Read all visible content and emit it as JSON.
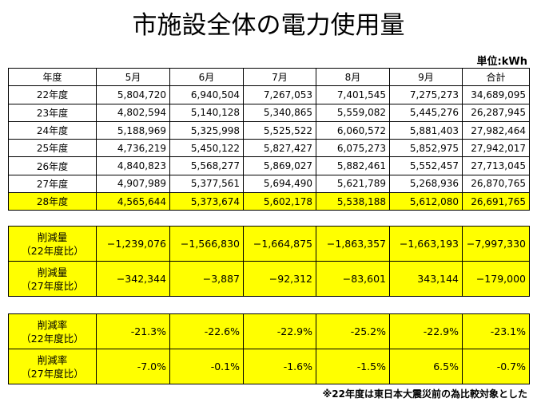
{
  "title": "市施設全体の電力使用量",
  "unit": "単位:kWh",
  "usage_table": {
    "header": [
      "年度",
      "5月",
      "6月",
      "7月",
      "8月",
      "9月",
      "合計"
    ],
    "rows": [
      [
        "22年度",
        "5,804,720",
        "6,940,504",
        "7,267,053",
        "7,401,545",
        "7,275,273",
        "34,689,095"
      ],
      [
        "23年度",
        "4,802,594",
        "5,140,128",
        "5,340,865",
        "5,559,082",
        "5,445,276",
        "26,287,945"
      ],
      [
        "24年度",
        "5,188,969",
        "5,325,998",
        "5,525,522",
        "6,060,572",
        "5,881,403",
        "27,982,464"
      ],
      [
        "25年度",
        "4,736,219",
        "5,450,122",
        "5,827,427",
        "6,075,273",
        "5,852,975",
        "27,942,017"
      ],
      [
        "26年度",
        "4,840,823",
        "5,568,277",
        "5,869,027",
        "5,882,461",
        "5,552,457",
        "27,713,045"
      ],
      [
        "27年度",
        "4,907,989",
        "5,377,561",
        "5,694,490",
        "5,621,789",
        "5,268,936",
        "26,870,765"
      ],
      [
        "28年度",
        "4,565,644",
        "5,373,674",
        "5,602,178",
        "5,538,188",
        "5,612,080",
        "26,691,765"
      ]
    ]
  },
  "reduction_table": {
    "rows": [
      {
        "label": [
          "削減量",
          "（22年度比）"
        ],
        "cells": [
          "−1,239,076",
          "−1,566,830",
          "−1,664,875",
          "−1,863,357",
          "−1,663,193",
          "−7,997,330"
        ]
      },
      {
        "label": [
          "削減量",
          "（27年度比）"
        ],
        "cells": [
          "−342,344",
          "−3,887",
          "−92,312",
          "−83,601",
          "343,144",
          "−179,000"
        ]
      }
    ]
  },
  "rate_table": {
    "rows": [
      {
        "label": [
          "削減率",
          "（22年度比）"
        ],
        "cells": [
          "-21.3%",
          "-22.6%",
          "-22.9%",
          "-25.2%",
          "-22.9%",
          "-23.1%"
        ]
      },
      {
        "label": [
          "削減率",
          "（27年度比）"
        ],
        "cells": [
          "-7.0%",
          "-0.1%",
          "-1.6%",
          "-1.5%",
          "6.5%",
          "-0.7%"
        ]
      }
    ]
  },
  "footnote": "※22年度は東日本大震災前の為比較対象とした"
}
